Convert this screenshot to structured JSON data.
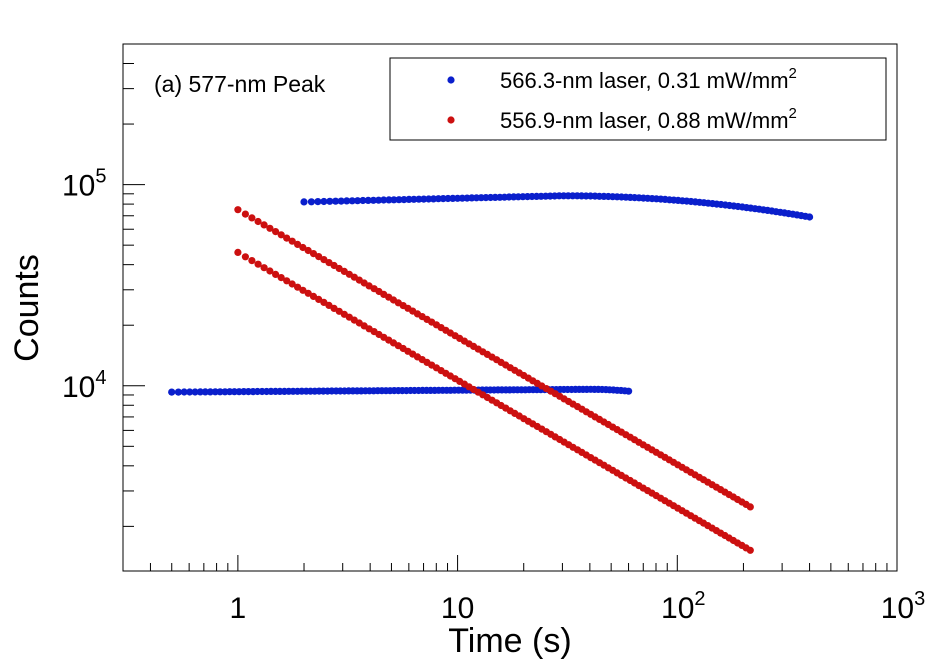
{
  "chart_data": {
    "type": "scatter",
    "title": "",
    "annotation": "(a) 577-nm Peak",
    "xlabel": "Time (s)",
    "ylabel": "Counts",
    "x_scale": "log",
    "y_scale": "log",
    "xlim": [
      0.3,
      1000
    ],
    "ylim": [
      1200,
      500000
    ],
    "x_tick_labels": [
      {
        "value": 1,
        "text": "1"
      },
      {
        "value": 10,
        "text": "10"
      },
      {
        "value": 100,
        "base": "10",
        "exp": "2"
      },
      {
        "value": 1000,
        "base": "10",
        "exp": "3"
      }
    ],
    "y_tick_labels": [
      {
        "value": 10000,
        "base": "10",
        "exp": "4"
      },
      {
        "value": 100000,
        "base": "10",
        "exp": "5"
      }
    ],
    "grid": false,
    "legend_position": "top-right",
    "series": [
      {
        "name": "566.3-nm laser, 0.31 mW/mm",
        "name_superscript": "2",
        "color": "#0a1fcc",
        "segments": [
          {
            "t_start": 2,
            "t_end": 400,
            "y_start": 82000,
            "y_peak": 88000,
            "t_peak": 30,
            "y_end": 69000
          },
          {
            "t_start": 0.5,
            "t_end": 60,
            "y_start": 9300,
            "y_peak": 9600,
            "t_peak": 40,
            "y_end": 9400
          }
        ]
      },
      {
        "name": "556.9-nm laser, 0.88 mW/mm",
        "name_superscript": "2",
        "color": "#cc1010",
        "segments": [
          {
            "t_start": 1,
            "t_end": 215,
            "y_start": 75000,
            "y_end": 2500
          },
          {
            "t_start": 1,
            "t_end": 215,
            "y_start": 46000,
            "y_end": 1520
          }
        ]
      }
    ]
  }
}
